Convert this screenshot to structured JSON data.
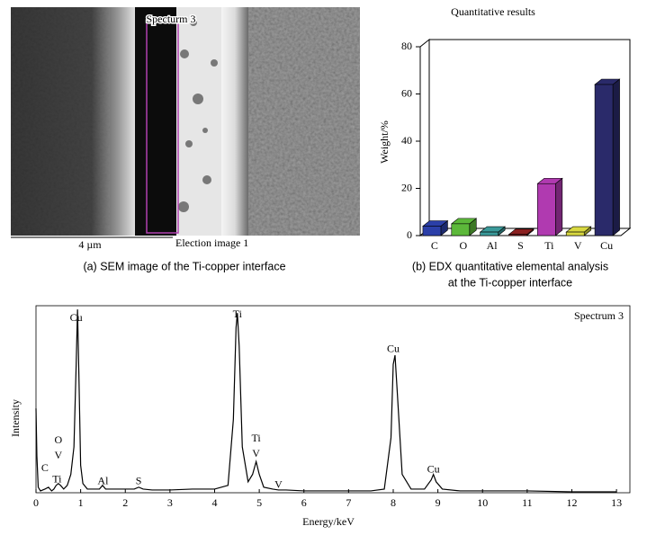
{
  "sem_panel": {
    "label": "Specturm 3",
    "scale_bar": "4 µm",
    "image_label": "Election image 1",
    "caption": "(a)  SEM image of the Ti-copper interface"
  },
  "chart_data": [
    {
      "type": "bar3d",
      "title": "Quantitative results",
      "y_label": "Weight/%",
      "categories": [
        "C",
        "O",
        "Al",
        "S",
        "Ti",
        "V",
        "Cu"
      ],
      "values": [
        4,
        5,
        1.5,
        0.5,
        22,
        1.5,
        64
      ],
      "colors": [
        "#2b3fa8",
        "#5cb83a",
        "#3a9a9a",
        "#8b2020",
        "#b03ab0",
        "#d8d840",
        "#2a2a6a"
      ],
      "ylim": [
        0,
        80
      ],
      "yticks": [
        0,
        20,
        40,
        60,
        80
      ],
      "caption": [
        "(b)  EDX quantitative elemental analysis",
        "at the Ti-copper interface"
      ]
    },
    {
      "type": "line",
      "x_label": "Energy/keV",
      "y_label": "Intensity",
      "x": [
        0,
        0.02,
        0.05,
        0.1,
        0.2,
        0.28,
        0.35,
        0.4,
        0.45,
        0.5,
        0.55,
        0.62,
        0.7,
        0.78,
        0.85,
        0.9,
        0.93,
        0.96,
        1.0,
        1.05,
        1.15,
        1.3,
        1.42,
        1.49,
        1.56,
        1.7,
        2.0,
        2.2,
        2.3,
        2.4,
        2.6,
        3.0,
        3.5,
        4.0,
        4.3,
        4.42,
        4.48,
        4.51,
        4.55,
        4.62,
        4.75,
        4.85,
        4.93,
        5.0,
        5.1,
        5.3,
        5.43,
        5.6,
        6.0,
        6.5,
        7.0,
        7.5,
        7.8,
        7.95,
        8.0,
        8.04,
        8.09,
        8.2,
        8.4,
        8.7,
        8.85,
        8.9,
        8.96,
        9.1,
        9.5,
        10,
        11,
        12,
        13
      ],
      "series": [
        {
          "name": "Spectrum 3",
          "color": "#000000",
          "values": [
            46,
            20,
            3,
            1,
            2,
            3,
            1,
            2,
            4,
            5,
            4,
            2,
            4,
            10,
            25,
            70,
            100,
            65,
            15,
            5,
            2,
            2,
            2,
            4,
            2,
            2,
            2,
            2,
            3,
            2,
            1.5,
            1.5,
            2,
            2,
            4,
            40,
            90,
            98,
            80,
            25,
            6,
            10,
            17,
            10,
            3,
            2,
            1.5,
            1.5,
            1,
            1,
            1,
            1,
            2,
            30,
            70,
            75,
            55,
            10,
            2,
            2,
            7,
            10,
            6,
            2,
            1,
            1,
            1,
            0.5,
            0.5
          ]
        }
      ],
      "xlim": [
        0,
        13.3
      ],
      "xticks": [
        0,
        1,
        2,
        3,
        4,
        5,
        6,
        7,
        8,
        9,
        10,
        11,
        12,
        13
      ],
      "ylim": [
        0,
        102
      ],
      "annotations": [
        {
          "labels": [
            "C"
          ],
          "x": 0.2,
          "y": 13
        },
        {
          "labels": [
            "Ti"
          ],
          "x": 0.47,
          "y": 7
        },
        {
          "labels": [
            "V",
            "O"
          ],
          "x": 0.5,
          "y": 20
        },
        {
          "labels": [
            "Cu"
          ],
          "x": 0.9,
          "y": 95
        },
        {
          "labels": [
            "Al"
          ],
          "x": 1.5,
          "y": 6
        },
        {
          "labels": [
            "S"
          ],
          "x": 2.3,
          "y": 6
        },
        {
          "labels": [
            "Ti"
          ],
          "x": 4.51,
          "y": 97
        },
        {
          "labels": [
            "V",
            "Ti"
          ],
          "x": 4.93,
          "y": 21
        },
        {
          "labels": [
            "V"
          ],
          "x": 5.43,
          "y": 4
        },
        {
          "labels": [
            "Cu"
          ],
          "x": 8.0,
          "y": 78
        },
        {
          "labels": [
            "Cu"
          ],
          "x": 8.9,
          "y": 12.5
        }
      ]
    }
  ]
}
